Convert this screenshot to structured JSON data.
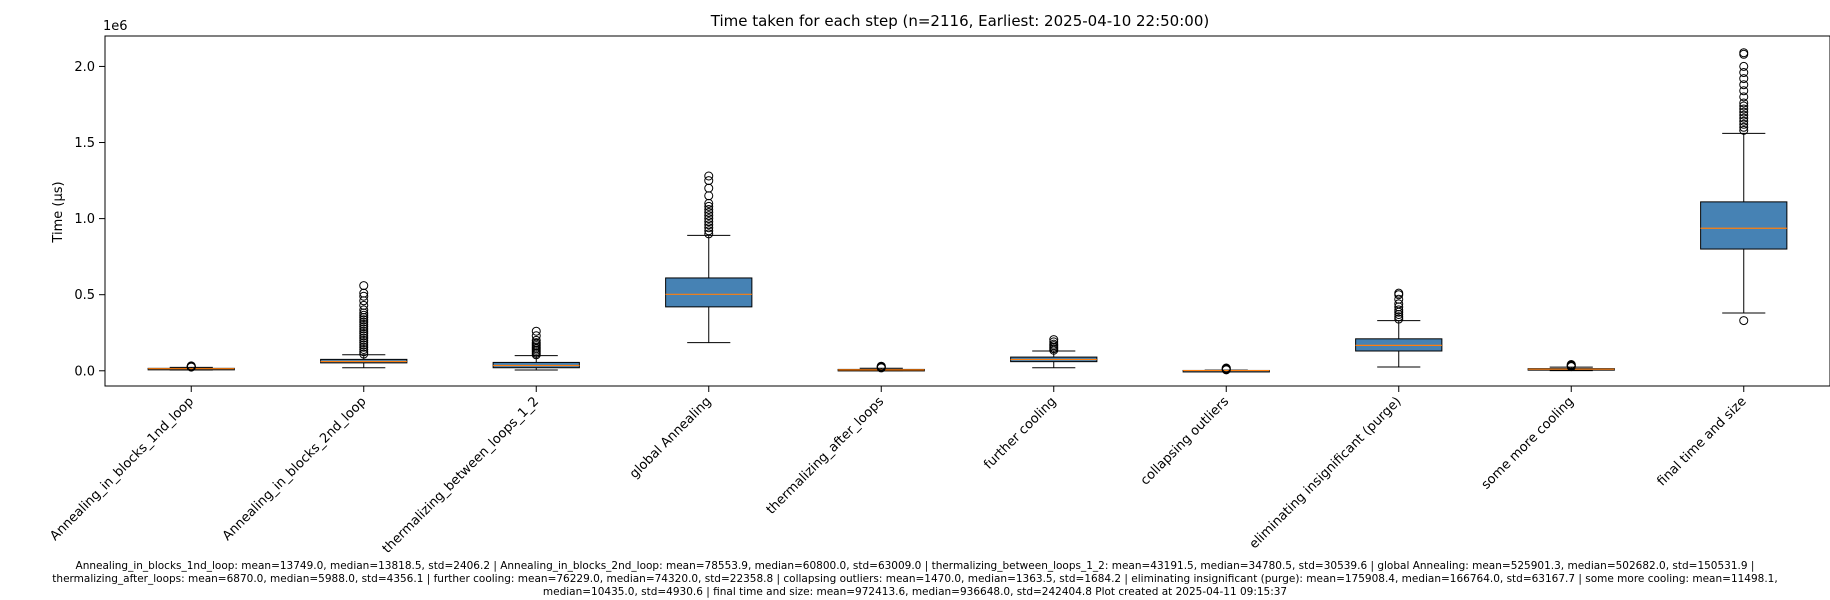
{
  "chart_data": {
    "type": "box",
    "title": "Time taken for each step (n=2116, Earliest: 2025-04-10 22:50:00)",
    "ylabel": "Time (µs)",
    "y_scale_label": "1e6",
    "ylim": [
      -100000,
      2200000
    ],
    "yticks": [
      0,
      500000,
      1000000,
      1500000,
      2000000
    ],
    "ytick_labels": [
      "0.0",
      "0.5",
      "1.0",
      "1.5",
      "2.0"
    ],
    "box_color": "#4682b4",
    "median_color": "#ff7f0e",
    "categories": [
      "Annealing_in_blocks_1nd_loop",
      "Annealing_in_blocks_2nd_loop",
      "thermalizing_between_loops_1_2",
      "global Annealing",
      "thermalizing_after_loops",
      "further cooling",
      "collapsing outliers",
      "eliminating insignificant (purge)",
      "some more cooling",
      "final time and size"
    ],
    "boxes": [
      {
        "whislo": 5000,
        "q1": 11000,
        "median": 13818.5,
        "q3": 16000,
        "whishi": 22000,
        "fliers": [
          24000,
          26000,
          28000,
          30000,
          32000
        ]
      },
      {
        "whislo": 20000,
        "q1": 52000,
        "median": 60800,
        "q3": 75000,
        "whishi": 105000,
        "fliers": [
          110000,
          125000,
          140000,
          155000,
          170000,
          185000,
          200000,
          215000,
          230000,
          245000,
          260000,
          275000,
          290000,
          305000,
          320000,
          335000,
          350000,
          365000,
          380000,
          400000,
          430000,
          460000,
          490000,
          510000,
          560000
        ]
      },
      {
        "whislo": 5000,
        "q1": 20000,
        "median": 34780.5,
        "q3": 55000,
        "whishi": 100000,
        "fliers": [
          105000,
          115000,
          125000,
          135000,
          145000,
          155000,
          165000,
          175000,
          185000,
          200000,
          230000,
          260000
        ]
      },
      {
        "whislo": 185000,
        "q1": 420000,
        "median": 502682,
        "q3": 610000,
        "whishi": 890000,
        "fliers": [
          900000,
          920000,
          940000,
          960000,
          980000,
          1000000,
          1020000,
          1040000,
          1060000,
          1080000,
          1100000,
          1150000,
          1200000,
          1250000,
          1280000
        ]
      },
      {
        "whislo": 1000,
        "q1": 3500,
        "median": 5988,
        "q3": 9000,
        "whishi": 17000,
        "fliers": [
          19000,
          22000,
          25000,
          28000,
          30000
        ]
      },
      {
        "whislo": 20000,
        "q1": 60000,
        "median": 74320,
        "q3": 90000,
        "whishi": 130000,
        "fliers": [
          135000,
          145000,
          155000,
          165000,
          175000,
          190000,
          205000
        ]
      },
      {
        "whislo": 0,
        "q1": 500,
        "median": 1363.5,
        "q3": 2200,
        "whishi": 4500,
        "fliers": [
          6000,
          9000,
          12000,
          15000,
          18000
        ]
      },
      {
        "whislo": 25000,
        "q1": 130000,
        "median": 166764,
        "q3": 210000,
        "whishi": 330000,
        "fliers": [
          340000,
          355000,
          370000,
          385000,
          400000,
          420000,
          440000,
          470000,
          500000,
          510000
        ]
      },
      {
        "whislo": 1000,
        "q1": 7500,
        "median": 10435,
        "q3": 14000,
        "whishi": 24000,
        "fliers": [
          27000,
          30000,
          33000,
          37000,
          41000
        ]
      },
      {
        "whislo": 380000,
        "q1": 800000,
        "median": 936648,
        "q3": 1110000,
        "whishi": 1560000,
        "fliers": [
          330000,
          1580000,
          1600000,
          1620000,
          1640000,
          1660000,
          1680000,
          1700000,
          1720000,
          1740000,
          1760000,
          1800000,
          1840000,
          1880000,
          1920000,
          1960000,
          2000000,
          2080000,
          2090000
        ]
      }
    ]
  },
  "footer": {
    "line1": "Annealing_in_blocks_1nd_loop: mean=13749.0, median=13818.5, std=2406.2 | Annealing_in_blocks_2nd_loop: mean=78553.9, median=60800.0, std=63009.0 | thermalizing_between_loops_1_2: mean=43191.5, median=34780.5, std=30539.6 | global Annealing: mean=525901.3, median=502682.0, std=150531.9 |",
    "line2": "thermalizing_after_loops: mean=6870.0, median=5988.0, std=4356.1 | further cooling: mean=76229.0, median=74320.0, std=22358.8 | collapsing outliers: mean=1470.0, median=1363.5, std=1684.2 | eliminating insignificant (purge): mean=175908.4, median=166764.0, std=63167.7 | some more cooling: mean=11498.1,",
    "line3": "median=10435.0, std=4930.6 | final time and size: mean=972413.6, median=936648.0, std=242404.8    Plot created at 2025-04-11 09:15:37"
  }
}
